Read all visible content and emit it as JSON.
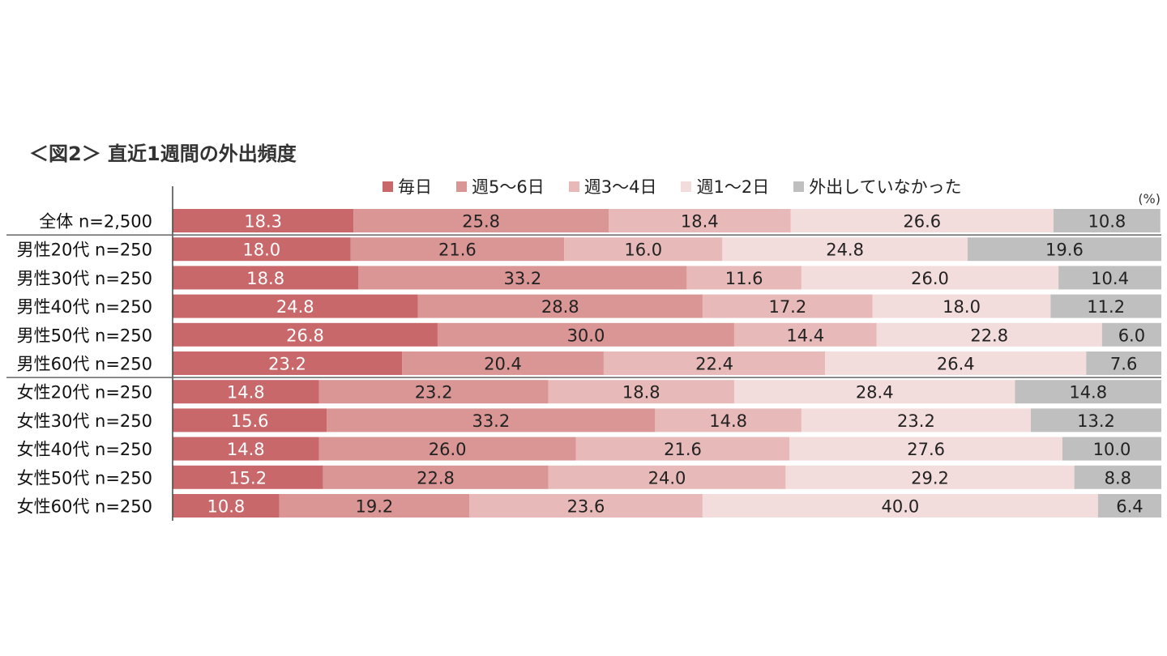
{
  "chart_data": {
    "type": "bar",
    "orientation": "horizontal",
    "stacked": true,
    "title": "＜図2＞ 直近1週間の外出頻度",
    "unit_label": "(%)",
    "xlim": [
      0,
      100
    ],
    "legend_position": "top",
    "categories": [
      "全体 n=2,500",
      "男性20代 n=250",
      "男性30代 n=250",
      "男性40代 n=250",
      "男性50代 n=250",
      "男性60代 n=250",
      "女性20代 n=250",
      "女性30代 n=250",
      "女性40代 n=250",
      "女性50代 n=250",
      "女性60代 n=250"
    ],
    "series": [
      {
        "name": "毎日",
        "color": "#c9686a",
        "label_color": "#ffffff",
        "values": [
          18.3,
          18.0,
          18.8,
          24.8,
          26.8,
          23.2,
          14.8,
          15.6,
          14.8,
          15.2,
          10.8
        ]
      },
      {
        "name": "週5〜6日",
        "color": "#da9595",
        "label_color": "#222222",
        "values": [
          25.8,
          21.6,
          33.2,
          28.8,
          30.0,
          20.4,
          23.2,
          33.2,
          26.0,
          22.8,
          19.2
        ]
      },
      {
        "name": "週3〜4日",
        "color": "#e8b9b9",
        "label_color": "#222222",
        "values": [
          18.4,
          16.0,
          11.6,
          17.2,
          14.4,
          22.4,
          18.8,
          14.8,
          21.6,
          24.0,
          23.6
        ]
      },
      {
        "name": "週1〜2日",
        "color": "#f3dcdc",
        "label_color": "#222222",
        "values": [
          26.6,
          24.8,
          26.0,
          18.0,
          22.8,
          26.4,
          28.4,
          23.2,
          27.6,
          29.2,
          40.0
        ]
      },
      {
        "name": "外出していなかった",
        "color": "#bfbfbf",
        "label_color": "#222222",
        "values": [
          10.8,
          19.6,
          10.4,
          11.2,
          6.0,
          7.6,
          14.8,
          13.2,
          10.0,
          8.8,
          6.4
        ]
      }
    ]
  }
}
